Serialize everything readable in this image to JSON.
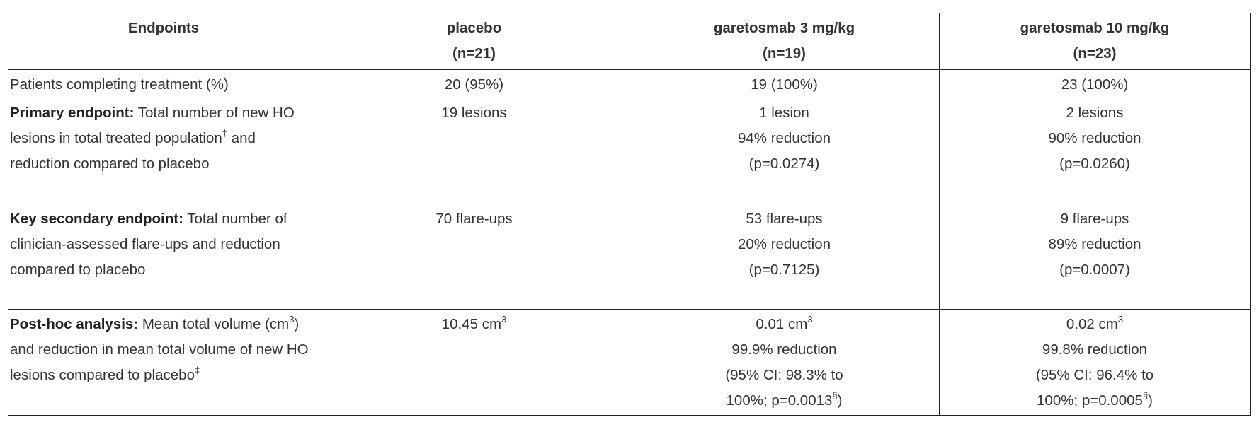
{
  "table": {
    "header": [
      [
        "Endpoints"
      ],
      [
        "placebo",
        "(n=21)"
      ],
      [
        "garetosmab 3 mg/kg",
        "(n=19)"
      ],
      [
        "garetosmab 10 mg/kg",
        "(n=23)"
      ]
    ],
    "rows": [
      [
        [
          [
            "Patients completing treatment (%)"
          ]
        ],
        [
          [
            "20 (95%)"
          ]
        ],
        [
          [
            "19 (100%)"
          ]
        ],
        [
          [
            "23 (100%)"
          ]
        ]
      ],
      [
        [
          [
            {
              "b": "Primary endpoint:"
            },
            " Total number of new HO lesions in total treated population",
            {
              "sup": "†"
            },
            " and reduction compared to placebo"
          ]
        ],
        [
          [
            "19 lesions"
          ]
        ],
        [
          [
            "1 lesion"
          ],
          [
            "94% reduction"
          ],
          [
            "(p=0.0274)"
          ]
        ],
        [
          [
            "2 lesions"
          ],
          [
            "90% reduction"
          ],
          [
            "(p=0.0260)"
          ]
        ]
      ],
      [
        [
          [
            {
              "b": "Key secondary endpoint:"
            },
            " Total number of clinician-assessed flare-ups and reduction compared to placebo"
          ]
        ],
        [
          [
            "70 flare-ups"
          ]
        ],
        [
          [
            "53 flare-ups"
          ],
          [
            "20% reduction"
          ],
          [
            "(p=0.7125)"
          ]
        ],
        [
          [
            "9 flare-ups"
          ],
          [
            "89% reduction"
          ],
          [
            "(p=0.0007)"
          ]
        ]
      ],
      [
        [
          [
            {
              "b": "Post-hoc analysis:"
            },
            " Mean total volume (cm",
            {
              "sup": "3"
            },
            ") and reduction in mean total volume of new HO lesions compared to placebo",
            {
              "sup": "‡"
            }
          ]
        ],
        [
          [
            "10.45 cm",
            {
              "sup": "3"
            }
          ]
        ],
        [
          [
            "0.01 cm",
            {
              "sup": "3"
            }
          ],
          [
            "99.9% reduction"
          ],
          [
            "(95% CI: 98.3% to"
          ],
          [
            "100%; p=0.0013",
            {
              "sup": "§"
            },
            ")"
          ]
        ],
        [
          [
            "0.02 cm",
            {
              "sup": "3"
            }
          ],
          [
            "99.8% reduction"
          ],
          [
            "(95% CI: 96.4% to"
          ],
          [
            "100%; p=0.0005",
            {
              "sup": "§"
            },
            ")"
          ]
        ]
      ]
    ]
  }
}
